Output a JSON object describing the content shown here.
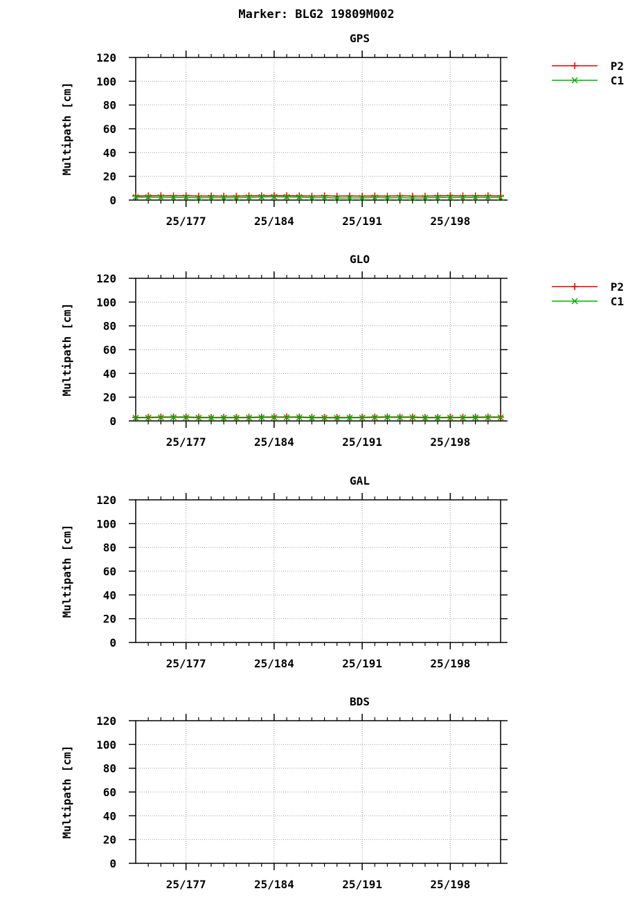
{
  "figure": {
    "title": "Marker: BLG2 19809M002"
  },
  "colors": {
    "P2": "#e00000",
    "C1": "#00b000",
    "grid": "#a0a0a0",
    "axes": "#000000"
  },
  "chart_data": [
    {
      "type": "line",
      "title": "GPS",
      "ylabel": "Multipath [cm]",
      "ylim": [
        0,
        120
      ],
      "yticks": [
        0,
        20,
        40,
        60,
        80,
        100,
        120
      ],
      "xlim": [
        173,
        202
      ],
      "xticks": [
        177,
        184,
        191,
        198
      ],
      "xtick_labels": [
        "25/177",
        "25/184",
        "25/191",
        "25/198"
      ],
      "grid": true,
      "legend": "top-right",
      "series": [
        {
          "name": "P2",
          "marker": "plus",
          "x": [
            173,
            174,
            175,
            176,
            177,
            178,
            179,
            180,
            181,
            182,
            183,
            184,
            185,
            186,
            187,
            188,
            189,
            190,
            191,
            192,
            193,
            194,
            195,
            196,
            197,
            198,
            199,
            200,
            201,
            202
          ],
          "y": [
            3.5,
            3.6,
            3.7,
            3.6,
            3.7,
            3.3,
            3.5,
            3.3,
            3.3,
            3.6,
            3.7,
            3.8,
            3.7,
            3.6,
            3.3,
            3.6,
            3.3,
            3.5,
            3.3,
            3.5,
            3.3,
            3.6,
            3.3,
            3.3,
            3.6,
            3.7,
            3.5,
            3.6,
            3.7,
            3.4
          ]
        },
        {
          "name": "C1",
          "marker": "x",
          "x": [
            173,
            174,
            175,
            176,
            177,
            178,
            179,
            180,
            181,
            182,
            183,
            184,
            185,
            186,
            187,
            188,
            189,
            190,
            191,
            192,
            193,
            194,
            195,
            196,
            197,
            198,
            199,
            200,
            201,
            202
          ],
          "y": [
            2.5,
            2.5,
            2.4,
            2.2,
            2.3,
            1.9,
            2.1,
            2.0,
            2.0,
            2.3,
            2.6,
            2.7,
            2.6,
            2.5,
            1.9,
            2.2,
            1.7,
            1.8,
            1.8,
            2.2,
            1.8,
            2.1,
            1.7,
            1.9,
            2.2,
            2.3,
            2.1,
            2.2,
            2.4,
            2.0
          ]
        }
      ]
    },
    {
      "type": "line",
      "title": "GLO",
      "ylabel": "Multipath [cm]",
      "ylim": [
        0,
        120
      ],
      "yticks": [
        0,
        20,
        40,
        60,
        80,
        100,
        120
      ],
      "xlim": [
        173,
        202
      ],
      "xticks": [
        177,
        184,
        191,
        198
      ],
      "xtick_labels": [
        "25/177",
        "25/184",
        "25/191",
        "25/198"
      ],
      "grid": true,
      "legend": "top-right",
      "series": [
        {
          "name": "P2",
          "marker": "plus",
          "x": [
            173,
            174,
            175,
            176,
            177,
            178,
            179,
            180,
            181,
            182,
            183,
            184,
            185,
            186,
            187,
            188,
            189,
            190,
            191,
            192,
            193,
            194,
            195,
            196,
            197,
            198,
            199,
            200,
            201,
            202
          ],
          "y": [
            3.0,
            3.1,
            3.3,
            3.4,
            3.3,
            3.1,
            3.0,
            3.0,
            3.0,
            3.1,
            3.3,
            3.4,
            3.4,
            3.3,
            3.0,
            3.0,
            2.9,
            3.0,
            3.1,
            3.3,
            3.4,
            3.3,
            3.3,
            3.0,
            3.0,
            3.1,
            3.1,
            3.2,
            3.3,
            3.3
          ]
        },
        {
          "name": "C1",
          "marker": "x",
          "x": [
            173,
            174,
            175,
            176,
            177,
            178,
            179,
            180,
            181,
            182,
            183,
            184,
            185,
            186,
            187,
            188,
            189,
            190,
            191,
            192,
            193,
            194,
            195,
            196,
            197,
            198,
            199,
            200,
            201,
            202
          ],
          "y": [
            2.6,
            2.7,
            2.9,
            3.0,
            2.9,
            2.7,
            2.6,
            2.6,
            2.6,
            2.7,
            2.9,
            3.0,
            3.0,
            2.9,
            2.6,
            2.6,
            2.5,
            2.6,
            2.7,
            2.9,
            3.0,
            2.9,
            2.9,
            2.6,
            2.6,
            2.7,
            2.7,
            2.8,
            2.9,
            2.9
          ]
        }
      ]
    },
    {
      "type": "line",
      "title": "GAL",
      "ylabel": "Multipath [cm]",
      "ylim": [
        0,
        120
      ],
      "yticks": [
        0,
        20,
        40,
        60,
        80,
        100,
        120
      ],
      "xlim": [
        173,
        202
      ],
      "xticks": [
        177,
        184,
        191,
        198
      ],
      "xtick_labels": [
        "25/177",
        "25/184",
        "25/191",
        "25/198"
      ],
      "grid": true,
      "series": []
    },
    {
      "type": "line",
      "title": "BDS",
      "ylabel": "Multipath [cm]",
      "ylim": [
        0,
        120
      ],
      "yticks": [
        0,
        20,
        40,
        60,
        80,
        100,
        120
      ],
      "xlim": [
        173,
        202
      ],
      "xticks": [
        177,
        184,
        191,
        198
      ],
      "xtick_labels": [
        "25/177",
        "25/184",
        "25/191",
        "25/198"
      ],
      "grid": true,
      "series": []
    }
  ]
}
